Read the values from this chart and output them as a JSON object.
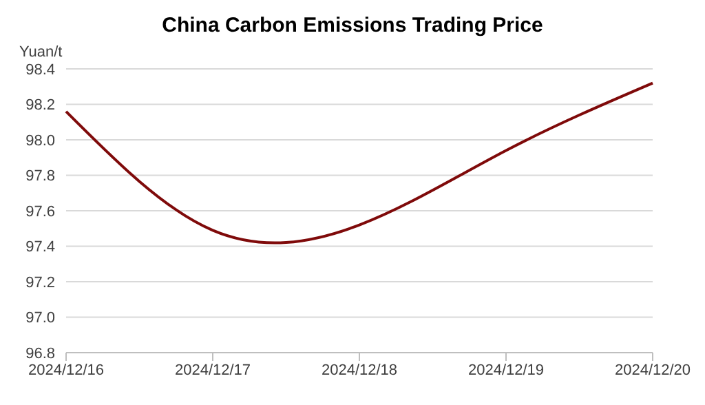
{
  "chart_data": {
    "type": "line",
    "title": "China Carbon Emissions Trading Price",
    "ylabel": "Yuan/t",
    "categories": [
      "2024/12/16",
      "2024/12/17",
      "2024/12/18",
      "2024/12/19",
      "2024/12/20"
    ],
    "series": [
      {
        "color": "#7f0a0a",
        "values": [
          98.16,
          97.49,
          97.52,
          97.94,
          98.32
        ]
      }
    ],
    "ylim": [
      96.8,
      98.4
    ],
    "yticks": [
      96.8,
      {
        "value": 97,
        "label": "97.0"
      },
      97.2,
      97.4,
      97.6,
      97.8,
      {
        "value": 98,
        "label": "98.0"
      },
      98.2,
      98.4
    ],
    "grid": "y",
    "legend": false,
    "marker": "none",
    "line_style": "solid"
  }
}
